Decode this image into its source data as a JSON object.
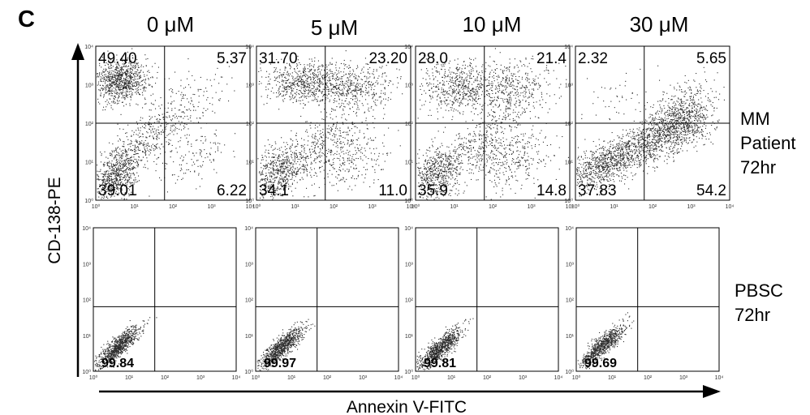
{
  "panel_label": "C",
  "axis_labels": {
    "y": "CD-138-PE",
    "x": "Annexin V-FITC"
  },
  "chart_data": {
    "type": "scatter",
    "axis": {
      "x_scale": "log",
      "y_scale": "log",
      "range": [
        1,
        10000
      ],
      "ticks": [
        1,
        10,
        100,
        1000,
        10000
      ]
    },
    "concentrations": [
      "0 μM",
      "5 μM",
      "10 μM",
      "30 μM"
    ],
    "row_labels": [
      [
        "MM",
        "Patient",
        "72hr"
      ],
      [
        "PBSC",
        "72hr"
      ]
    ],
    "mm_patient_72hr": {
      "quadrants": [
        {
          "ul": "49.40",
          "ur": "5.37",
          "ll": "39.01",
          "lr": "6.22"
        },
        {
          "ul": "31.70",
          "ur": "23.20",
          "ll": "34.1",
          "lr": "11.0"
        },
        {
          "ul": "28.0",
          "ur": "21.4",
          "ll": "35.9",
          "lr": "14.8"
        },
        {
          "ul": "2.32",
          "ur": "5.65",
          "ll": "37.83",
          "lr": "54.2"
        }
      ]
    },
    "pbsc_72hr": {
      "lower_left": [
        "99.84",
        "99.97",
        "99.81",
        "99.69"
      ]
    }
  }
}
